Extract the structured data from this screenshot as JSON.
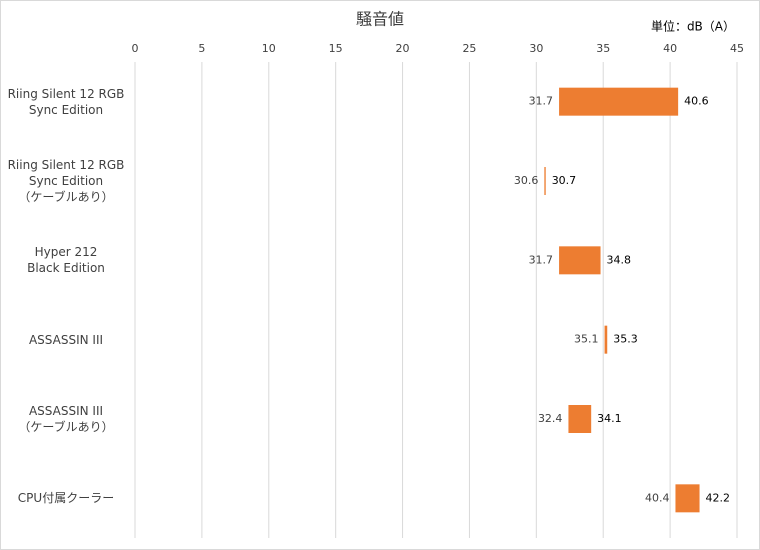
{
  "chart_data": {
    "type": "range-bar",
    "title": "騒音値",
    "unit_label": "単位：dB（A）",
    "categories": [
      "Riing Silent 12 RGB\nSync Edition",
      "Riing Silent 12 RGB\nSync Edition\n（ケーブルあり）",
      "Hyper 212\nBlack Edition",
      "ASSASSIN III",
      "ASSASSIN III\n（ケーブルあり）",
      "CPU付属クーラー"
    ],
    "low": [
      31.7,
      30.6,
      31.7,
      35.1,
      32.4,
      40.4
    ],
    "high": [
      40.6,
      30.7,
      34.8,
      35.3,
      34.1,
      42.2
    ],
    "color": "#ed7d31",
    "xlim": [
      0,
      45
    ],
    "xticks": [
      0,
      5,
      10,
      15,
      20,
      25,
      30,
      35,
      40,
      45
    ],
    "grid": true
  }
}
